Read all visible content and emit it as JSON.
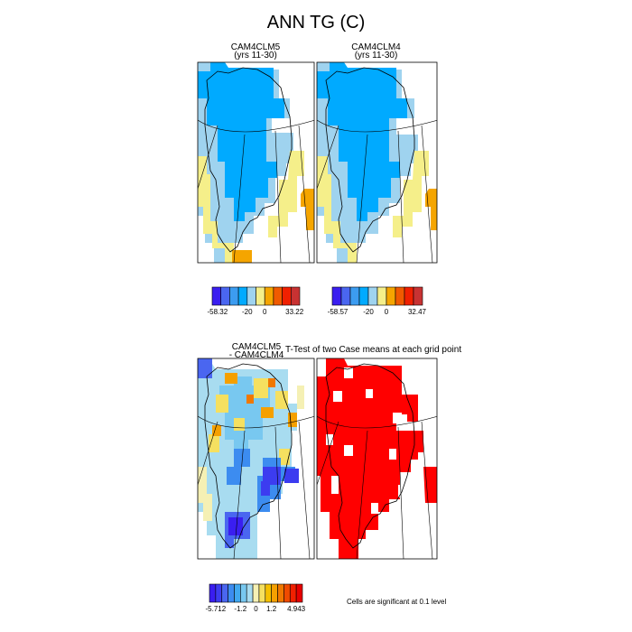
{
  "title": "ANN TG (C)",
  "panels": {
    "p1": {
      "title": "CAM4CLM5",
      "subtitle": "(yrs 11-30)"
    },
    "p2": {
      "title": "CAM4CLM4",
      "subtitle": "(yrs 11-30)"
    },
    "p3": {
      "title": "CAM4CLM5",
      "subtitle": "- CAM4CLM4"
    },
    "p4": {
      "title": "T-Test of two Case means at each grid point"
    }
  },
  "footnote": "Cells are significant at 0.1 level",
  "chart_data": [
    {
      "type": "heatmap",
      "title": "CAM4CLM5",
      "subtitle": "(yrs 11-30)",
      "colorbar": {
        "colors": [
          "#3a1ef0",
          "#4a66f0",
          "#3c9cf0",
          "#00aaff",
          "#9fd3ef",
          "#f5ef8a",
          "#f5a500",
          "#f05a00",
          "#f02000",
          "#c83232"
        ],
        "tick_labels": [
          "-58.32",
          "-20",
          "0",
          "33.22"
        ],
        "min": -58.32,
        "max": 33.22
      }
    },
    {
      "type": "heatmap",
      "title": "CAM4CLM4",
      "subtitle": "(yrs 11-30)",
      "colorbar": {
        "colors": [
          "#3a1ef0",
          "#4a66f0",
          "#3c9cf0",
          "#00aaff",
          "#9fd3ef",
          "#f5ef8a",
          "#f5a500",
          "#f05a00",
          "#f02000",
          "#c83232"
        ],
        "tick_labels": [
          "-58.57",
          "-20",
          "0",
          "32.47"
        ],
        "min": -58.57,
        "max": 32.47
      }
    },
    {
      "type": "heatmap",
      "title": "CAM4CLM5",
      "subtitle": "- CAM4CLM4",
      "colorbar": {
        "colors": [
          "#3a1ef0",
          "#3c3cf0",
          "#4a66f0",
          "#3c8cf0",
          "#40a8f0",
          "#78c8f0",
          "#a8dcf0",
          "#f5f0b4",
          "#f5e060",
          "#f5c000",
          "#f5a000",
          "#f07800",
          "#f04b00",
          "#f02000",
          "#e60000"
        ],
        "tick_labels": [
          "-5.712",
          "-1.2",
          "0",
          "1.2",
          "4.943"
        ],
        "min": -5.712,
        "max": 4.943
      }
    },
    {
      "type": "heatmap",
      "title": "T-Test of two Case means at each grid point",
      "note": "Cells are significant at 0.1 level",
      "colors": {
        "significant": "#ff0000"
      }
    }
  ]
}
